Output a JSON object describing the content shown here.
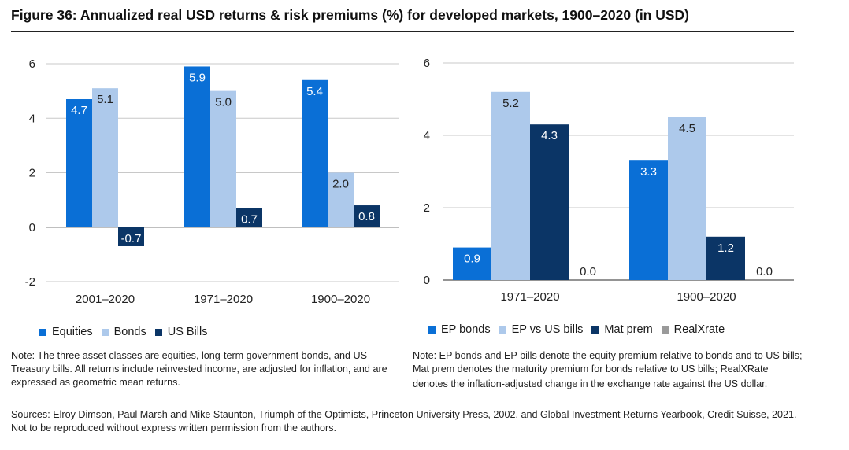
{
  "title": "Figure 36: Annualized real USD returns & risk premiums (%) for developed markets, 1900–2020 (in USD)",
  "colors": {
    "equities": "#0a6fd6",
    "bonds": "#adc9eb",
    "bills": "#0b3566",
    "realx": "#9a9a9a",
    "grid": "#c8c8c8",
    "axis": "#555555"
  },
  "chart_data": [
    {
      "type": "bar",
      "categories": [
        "2001–2020",
        "1971–2020",
        "1900–2020"
      ],
      "series": [
        {
          "name": "Equities",
          "values": [
            4.7,
            5.9,
            5.4
          ]
        },
        {
          "name": "Bonds",
          "values": [
            5.1,
            5.0,
            2.0
          ]
        },
        {
          "name": "US Bills",
          "values": [
            -0.7,
            0.7,
            0.8
          ]
        }
      ],
      "value_labels": [
        [
          "4.7",
          "5.9",
          "5.4"
        ],
        [
          "5.1",
          "5.0",
          "2.0"
        ],
        [
          "-0.7",
          "0.7",
          "0.8"
        ]
      ],
      "yticks": [
        "6",
        "4",
        "2",
        "0",
        "-2"
      ],
      "ylim": [
        -2,
        6
      ],
      "legend": [
        "Equities",
        "Bonds",
        "US Bills"
      ]
    },
    {
      "type": "bar",
      "categories": [
        "1971–2020",
        "1900–2020"
      ],
      "series": [
        {
          "name": "EP bonds",
          "values": [
            0.9,
            3.3
          ]
        },
        {
          "name": "EP vs US bills",
          "values": [
            5.2,
            4.5
          ]
        },
        {
          "name": "Mat prem",
          "values": [
            4.3,
            1.2
          ]
        },
        {
          "name": "RealXrate",
          "values": [
            0.0,
            0.0
          ]
        }
      ],
      "value_labels": [
        [
          "0.9",
          "3.3"
        ],
        [
          "5.2",
          "4.5"
        ],
        [
          "4.3",
          "1.2"
        ],
        [
          "0.0",
          "0.0"
        ]
      ],
      "yticks": [
        "6",
        "4",
        "2",
        "0"
      ],
      "ylim": [
        0,
        6
      ],
      "legend": [
        "EP bonds",
        "EP vs US bills",
        "Mat prem",
        "RealXrate"
      ]
    }
  ],
  "notes": {
    "left": "Note:  The three asset classes are equities, long-term government bonds, and US Treasury bills. All returns include reinvested income, are adjusted for inflation, and are expressed as geometric mean returns.",
    "right_line1": "Note: EP bonds and EP bills denote the equity premium relative to bonds and to US bills; Mat prem denotes the maturity premium for bonds relative to US bills; RealXRate",
    "right_line2": "denotes the inflation-adjusted change in the exchange rate against the US dollar.",
    "sources": "Sources: Elroy Dimson, Paul Marsh and Mike Staunton, Triumph of the Optimists, Princeton University Press, 2002, and Global Investment Returns Yearbook, Credit Suisse, 2021. Not to be reproduced without express written permission from the authors."
  }
}
